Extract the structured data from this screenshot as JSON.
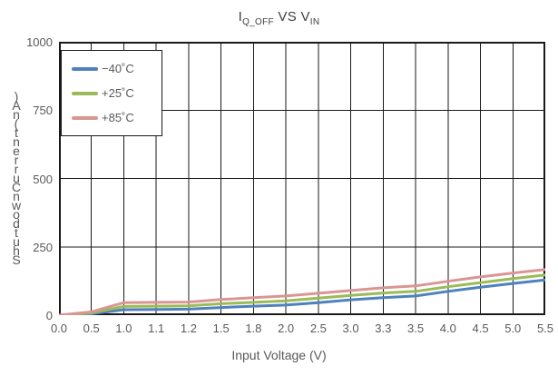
{
  "title": {
    "part1": "I",
    "sub1": "Q_OFF",
    "part2": " VS V",
    "sub2": "IN"
  },
  "chart_data": {
    "type": "line",
    "title": "I_Q_OFF VS V_IN",
    "xlabel": "Input Voltage (V)",
    "ylabel": "Shutdown Current (nA)",
    "ylim": [
      0,
      1000
    ],
    "yticks": [
      0,
      250,
      500,
      750,
      1000
    ],
    "categories": [
      "0.0",
      "0.5",
      "1.0",
      "1.1",
      "1.2",
      "1.5",
      "1.8",
      "2.0",
      "2.5",
      "3.0",
      "3.3",
      "3.5",
      "4.0",
      "4.5",
      "5.0",
      "5.5"
    ],
    "x_axis_type": "categorical-even-spacing",
    "grid": "on",
    "legend_position": "top-left",
    "series": [
      {
        "name": "−40˚C",
        "color": "#4F81BD",
        "values": [
          0,
          5,
          20,
          21,
          22,
          28,
          33,
          37,
          46,
          56,
          64,
          70,
          87,
          102,
          116,
          129
        ]
      },
      {
        "name": "+25˚C",
        "color": "#9BBB59",
        "values": [
          0,
          8,
          32,
          33,
          34,
          42,
          47,
          52,
          62,
          72,
          81,
          87,
          104,
          119,
          134,
          147
        ]
      },
      {
        "name": "+85˚C",
        "color": "#D99694",
        "values": [
          0,
          12,
          46,
          47,
          48,
          57,
          64,
          70,
          80,
          90,
          100,
          107,
          124,
          140,
          154,
          167
        ]
      }
    ]
  },
  "colors": {
    "text": "#595959",
    "title_text": "#404040",
    "grid": "#1a1a1a",
    "background": "#ffffff"
  }
}
